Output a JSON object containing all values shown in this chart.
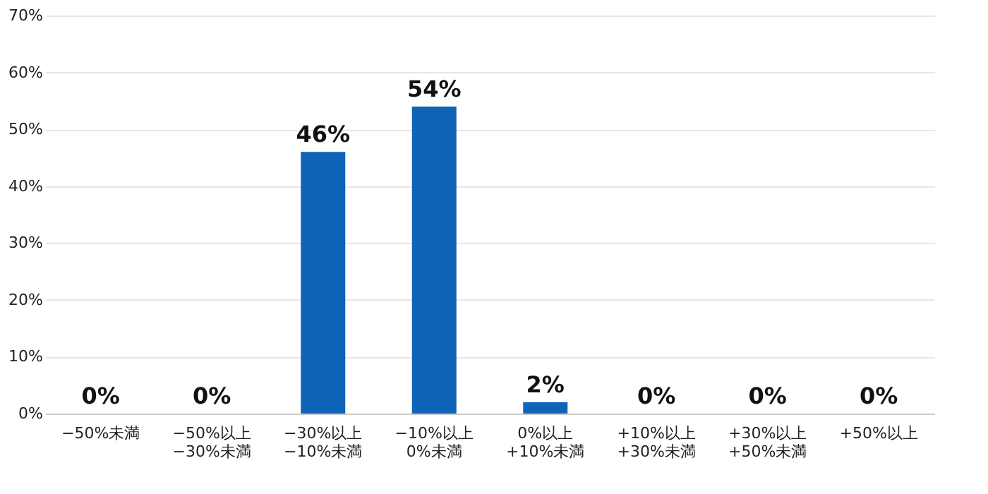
{
  "chart_data": {
    "type": "bar",
    "categories": [
      "−50%未満",
      "−50%以上\n−30%未満",
      "−30%以上\n−10%未満",
      "−10%以上\n0%未満",
      "0%以上\n+10%未満",
      "+10%以上\n+30%未満",
      "+30%以上\n+50%未満",
      "+50%以上"
    ],
    "values": [
      0,
      0,
      46,
      54,
      2,
      0,
      0,
      0
    ],
    "value_labels": [
      "0%",
      "0%",
      "46%",
      "54%",
      "2%",
      "0%",
      "0%",
      "0%"
    ],
    "color": "#0f64b8",
    "ylim": [
      0,
      70
    ],
    "yticks": [
      {
        "value": 0,
        "label": "0%"
      },
      {
        "value": 10,
        "label": "10%"
      },
      {
        "value": 20,
        "label": "20%"
      },
      {
        "value": 30,
        "label": "30%"
      },
      {
        "value": 40,
        "label": "40%"
      },
      {
        "value": 50,
        "label": "50%"
      },
      {
        "value": 60,
        "label": "60%"
      },
      {
        "value": 70,
        "label": "70%"
      }
    ],
    "grid": "y"
  }
}
